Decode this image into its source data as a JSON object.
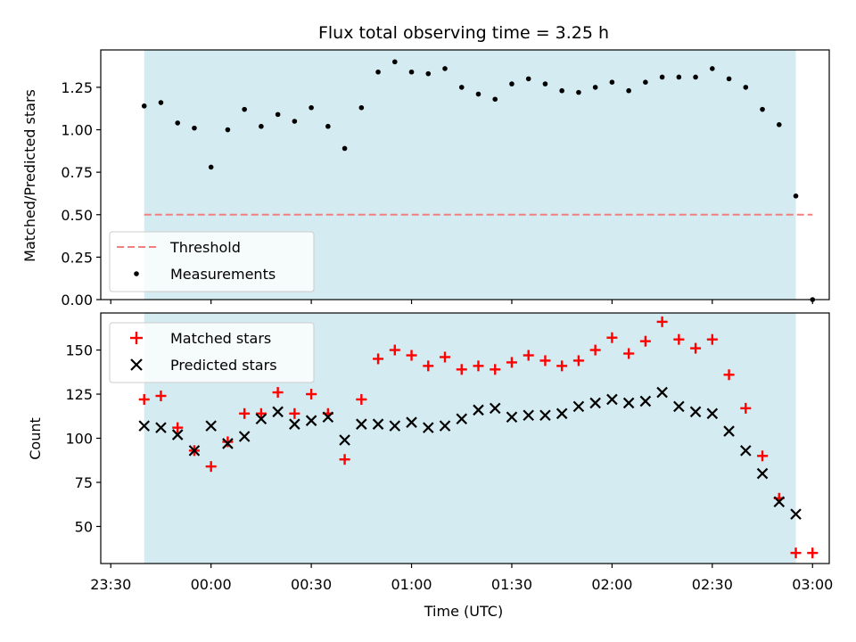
{
  "chart_data": [
    {
      "type": "scatter",
      "title": "Flux total observing time = 3.25 h",
      "ylabel": "Matched/Predicted stars",
      "xlabel": "",
      "x_tick_labels": [
        "23:30",
        "00:00",
        "00:30",
        "01:00",
        "01:30",
        "02:00",
        "02:30",
        "03:00"
      ],
      "y_tick_labels": [
        "0.00",
        "0.25",
        "0.50",
        "0.75",
        "1.00",
        "1.25"
      ],
      "ylim": [
        0,
        1.47
      ],
      "xlim": [
        "23:27",
        "03:05"
      ],
      "shaded_interval": [
        "23:40",
        "02:55"
      ],
      "shaded_color": "#d3ebf1",
      "grid": false,
      "legend_position": "lower-left",
      "threshold": {
        "name": "Threshold",
        "value": 0.5,
        "x": [
          "23:40",
          "03:00"
        ],
        "color": "#f08080",
        "style": "dashed"
      },
      "series": [
        {
          "name": "Measurements",
          "color": "#000000",
          "marker": "dot",
          "x": [
            "23:40",
            "23:45",
            "23:50",
            "23:55",
            "00:00",
            "00:05",
            "00:10",
            "00:15",
            "00:20",
            "00:25",
            "00:30",
            "00:35",
            "00:40",
            "00:45",
            "00:50",
            "00:55",
            "01:00",
            "01:05",
            "01:10",
            "01:15",
            "01:20",
            "01:25",
            "01:30",
            "01:35",
            "01:40",
            "01:45",
            "01:50",
            "01:55",
            "02:00",
            "02:05",
            "02:10",
            "02:15",
            "02:20",
            "02:25",
            "02:30",
            "02:35",
            "02:40",
            "02:45",
            "02:50",
            "02:55",
            "03:00"
          ],
          "y": [
            1.14,
            1.16,
            1.04,
            1.01,
            0.78,
            1.0,
            1.12,
            1.02,
            1.09,
            1.05,
            1.13,
            1.02,
            0.89,
            1.13,
            1.34,
            1.4,
            1.34,
            1.33,
            1.36,
            1.25,
            1.21,
            1.18,
            1.27,
            1.3,
            1.27,
            1.23,
            1.22,
            1.25,
            1.28,
            1.23,
            1.28,
            1.31,
            1.31,
            1.31,
            1.36,
            1.3,
            1.25,
            1.12,
            1.03,
            0.61,
            0.0
          ]
        }
      ]
    },
    {
      "type": "scatter",
      "title": "",
      "ylabel": "Count",
      "xlabel": "Time (UTC)",
      "x_tick_labels": [
        "23:30",
        "00:00",
        "00:30",
        "01:00",
        "01:30",
        "02:00",
        "02:30",
        "03:00"
      ],
      "y_tick_labels": [
        "50",
        "75",
        "100",
        "125",
        "150"
      ],
      "ylim": [
        29,
        171
      ],
      "xlim": [
        "23:27",
        "03:05"
      ],
      "shaded_interval": [
        "23:40",
        "02:55"
      ],
      "shaded_color": "#d3ebf1",
      "grid": false,
      "legend_position": "top-left",
      "series": [
        {
          "name": "Matched stars",
          "color": "#ff0000",
          "marker": "plus",
          "x": [
            "23:40",
            "23:45",
            "23:50",
            "23:55",
            "00:00",
            "00:05",
            "00:10",
            "00:15",
            "00:20",
            "00:25",
            "00:30",
            "00:35",
            "00:40",
            "00:45",
            "00:50",
            "00:55",
            "01:00",
            "01:05",
            "01:10",
            "01:15",
            "01:20",
            "01:25",
            "01:30",
            "01:35",
            "01:40",
            "01:45",
            "01:50",
            "01:55",
            "02:00",
            "02:05",
            "02:10",
            "02:15",
            "02:20",
            "02:25",
            "02:30",
            "02:35",
            "02:40",
            "02:45",
            "02:50",
            "02:55",
            "03:00"
          ],
          "y": [
            122,
            124,
            106,
            93,
            84,
            98,
            114,
            114,
            126,
            114,
            125,
            114,
            88,
            122,
            145,
            150,
            147,
            141,
            146,
            139,
            141,
            139,
            143,
            147,
            144,
            141,
            144,
            150,
            157,
            148,
            155,
            166,
            156,
            151,
            156,
            136,
            117,
            90,
            66,
            35,
            35
          ]
        },
        {
          "name": "Predicted stars",
          "color": "#000000",
          "marker": "x",
          "x": [
            "23:40",
            "23:45",
            "23:50",
            "23:55",
            "00:00",
            "00:05",
            "00:10",
            "00:15",
            "00:20",
            "00:25",
            "00:30",
            "00:35",
            "00:40",
            "00:45",
            "00:50",
            "00:55",
            "01:00",
            "01:05",
            "01:10",
            "01:15",
            "01:20",
            "01:25",
            "01:30",
            "01:35",
            "01:40",
            "01:45",
            "01:50",
            "01:55",
            "02:00",
            "02:05",
            "02:10",
            "02:15",
            "02:20",
            "02:25",
            "02:30",
            "02:35",
            "02:40",
            "02:45",
            "02:50",
            "02:55"
          ],
          "y": [
            107,
            106,
            102,
            93,
            107,
            97,
            101,
            111,
            115,
            108,
            110,
            112,
            99,
            108,
            108,
            107,
            109,
            106,
            107,
            111,
            116,
            117,
            112,
            113,
            113,
            114,
            118,
            120,
            122,
            120,
            121,
            126,
            118,
            115,
            114,
            104,
            93,
            80,
            64,
            57
          ]
        }
      ]
    }
  ]
}
